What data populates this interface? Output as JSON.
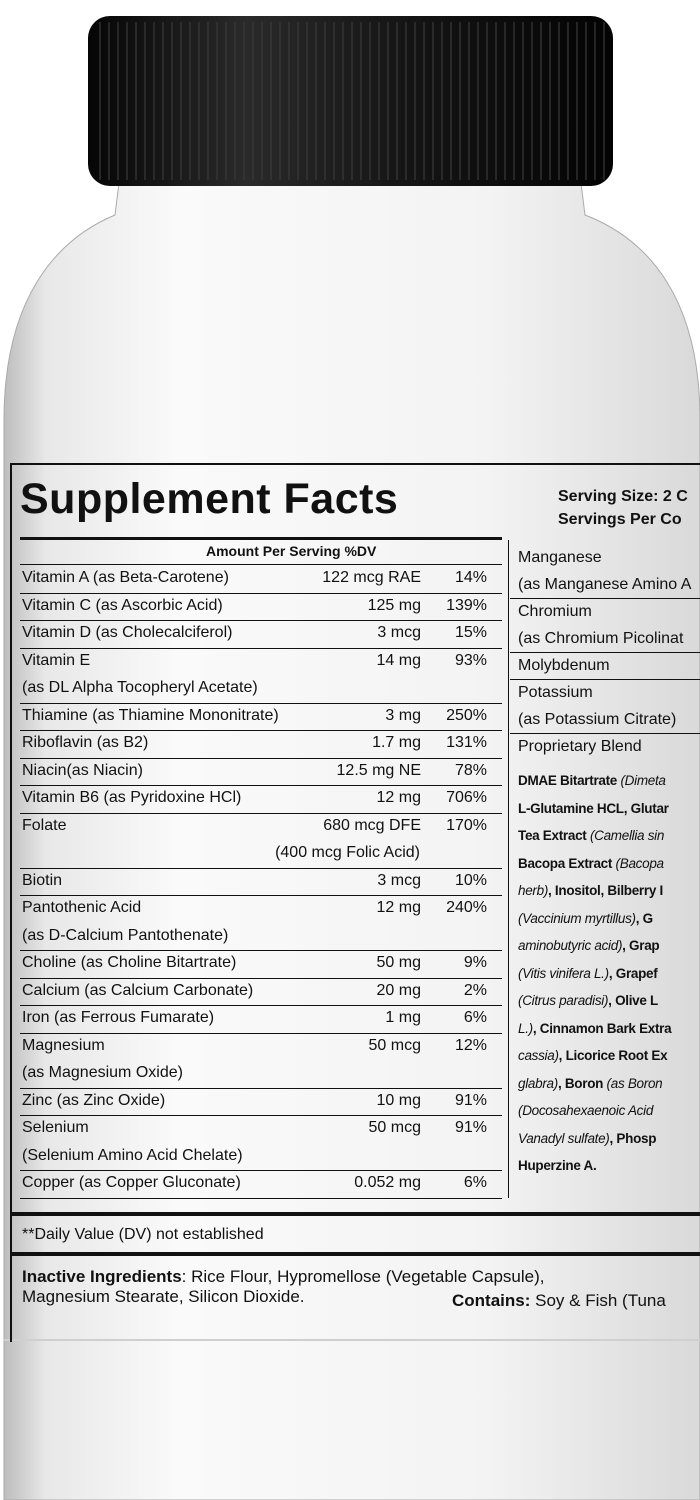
{
  "title": "Supplement Facts",
  "serving": [
    "Serving Size: 2 C",
    "Servings Per Co"
  ],
  "table": {
    "header": "Amount Per Serving %DV",
    "rows": [
      {
        "name": [
          "Vitamin A (as Beta-Carotene)"
        ],
        "amount": [
          "122 mcg RAE"
        ],
        "dv": "14%"
      },
      {
        "name": [
          "Vitamin C (as Ascorbic Acid)"
        ],
        "amount": [
          "125 mg"
        ],
        "dv": "139%"
      },
      {
        "name": [
          "Vitamin D (as Cholecalciferol)"
        ],
        "amount": [
          "3 mcg"
        ],
        "dv": "15%"
      },
      {
        "name": [
          "Vitamin E",
          "(as DL Alpha Tocopheryl Acetate)"
        ],
        "amount": [
          "14 mg"
        ],
        "dv": "93%"
      },
      {
        "name": [
          "Thiamine (as Thiamine Mononitrate)"
        ],
        "amount": [
          "3 mg"
        ],
        "dv": "250%"
      },
      {
        "name": [
          "Riboflavin (as B2)"
        ],
        "amount": [
          "1.7 mg"
        ],
        "dv": "131%"
      },
      {
        "name": [
          "Niacin(as Niacin)"
        ],
        "amount": [
          "12.5 mg NE"
        ],
        "dv": "78%"
      },
      {
        "name": [
          "Vitamin B6 (as Pyridoxine HCl)"
        ],
        "amount": [
          "12 mg"
        ],
        "dv": "706%"
      },
      {
        "name": [
          "Folate"
        ],
        "amount": [
          "680 mcg DFE",
          "(400 mcg Folic Acid)"
        ],
        "dv": "170%"
      },
      {
        "name": [
          "Biotin"
        ],
        "amount": [
          "3 mcg"
        ],
        "dv": "10%"
      },
      {
        "name": [
          "Pantothenic Acid",
          "(as D-Calcium Pantothenate)"
        ],
        "amount": [
          "12 mg"
        ],
        "dv": "240%"
      },
      {
        "name": [
          "Choline (as Choline Bitartrate)"
        ],
        "amount": [
          "50 mg"
        ],
        "dv": "9%"
      },
      {
        "name": [
          "Calcium (as Calcium Carbonate)"
        ],
        "amount": [
          "20 mg"
        ],
        "dv": "2%"
      },
      {
        "name": [
          "Iron (as Ferrous Fumarate)"
        ],
        "amount": [
          "1 mg"
        ],
        "dv": "6%"
      },
      {
        "name": [
          "Magnesium",
          "(as Magnesium Oxide)"
        ],
        "amount": [
          "50 mcg"
        ],
        "dv": "12%"
      },
      {
        "name": [
          "Zinc (as Zinc Oxide)"
        ],
        "amount": [
          "10 mg"
        ],
        "dv": "91%"
      },
      {
        "name": [
          "Selenium",
          "(Selenium Amino Acid Chelate)"
        ],
        "amount": [
          "50 mcg"
        ],
        "dv": "91%"
      },
      {
        "name": [
          "Copper (as Copper Gluconate)"
        ],
        "amount": [
          "0.052 mg"
        ],
        "dv": "6%"
      }
    ]
  },
  "right_table": {
    "rows": [
      {
        "name": [
          "Manganese",
          "(as Manganese Amino A"
        ]
      },
      {
        "name": [
          "Chromium",
          "(as Chromium Picolinat"
        ]
      },
      {
        "name": [
          "Molybdenum"
        ]
      },
      {
        "name": [
          "Potassium",
          "(as Potassium Citrate)"
        ]
      },
      {
        "name": [
          "Proprietary Blend"
        ]
      }
    ],
    "blend": [
      [
        {
          "text": "DMAE Bitartrate "
        },
        {
          "text": "(Dimeta",
          "italic": true
        }
      ],
      [
        {
          "text": "L-Glutamine HCL, Glutar"
        }
      ],
      [
        {
          "text": "Tea Extract "
        },
        {
          "text": "(Camellia sin",
          "italic": true
        }
      ],
      [
        {
          "text": "Bacopa Extract "
        },
        {
          "text": "(Bacopa",
          "italic": true
        }
      ],
      [
        {
          "text": "herb)",
          "italic": true
        },
        {
          "text": ", Inositol, Bilberry I"
        }
      ],
      [
        {
          "text": "(Vaccinium myrtillus)",
          "italic": true
        },
        {
          "text": ", G"
        }
      ],
      [
        {
          "text": "aminobutyric acid)",
          "italic": true
        },
        {
          "text": ", Grap"
        }
      ],
      [
        {
          "text": "(Vitis vinifera L.)",
          "italic": true
        },
        {
          "text": ", Grapef"
        }
      ],
      [
        {
          "text": "(Citrus paradisi)",
          "italic": true
        },
        {
          "text": ", Olive L"
        }
      ],
      [
        {
          "text": "L.)",
          "italic": true
        },
        {
          "text": ", Cinnamon Bark Extra"
        }
      ],
      [
        {
          "text": "cassia)",
          "italic": true
        },
        {
          "text": ", Licorice Root Ex"
        }
      ],
      [
        {
          "text": "glabra)",
          "italic": true
        },
        {
          "text": ", Boron "
        },
        {
          "text": "(as Boron",
          "italic": true
        }
      ],
      [
        {
          "text": "(Docosahexaenoic Acid",
          "italic": true
        }
      ],
      [
        {
          "text": "Vanadyl sulfate)",
          "italic": true
        },
        {
          "text": ", Phosp"
        }
      ],
      [
        {
          "text": "Huperzine A."
        }
      ]
    ]
  },
  "footnote": "**Daily Value (DV) not established",
  "inactive": {
    "label": "Inactive Ingredients",
    "lines": [
      ": Rice Flour, Hypromellose (Vegetable Capsule),",
      "Magnesium Stearate, Silicon Dioxide."
    ]
  },
  "contains": {
    "label": "Contains:",
    "text": " Soy & Fish (Tuna"
  }
}
